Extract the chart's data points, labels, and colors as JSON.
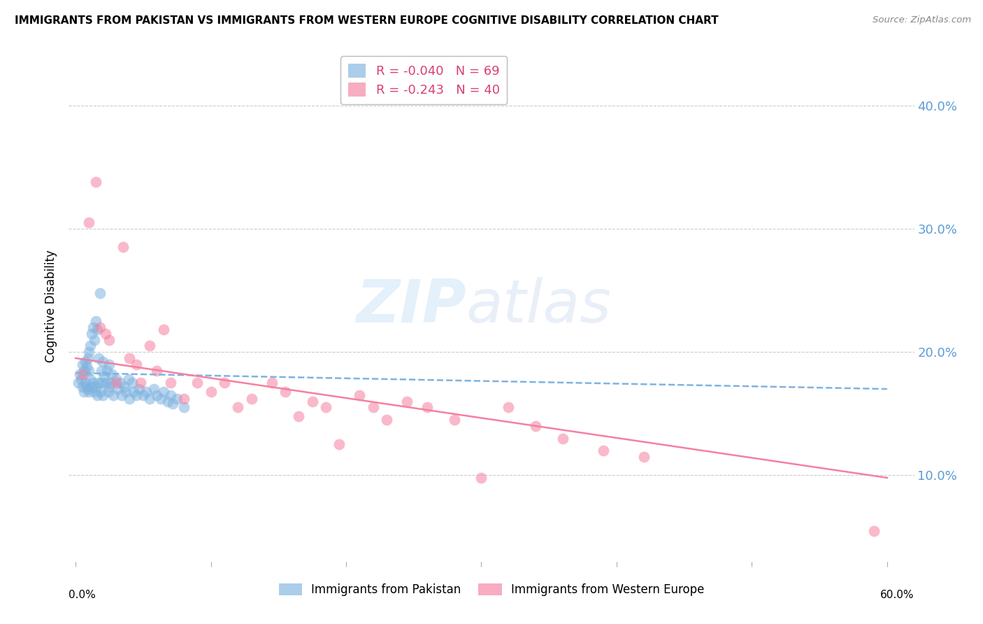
{
  "title": "IMMIGRANTS FROM PAKISTAN VS IMMIGRANTS FROM WESTERN EUROPE COGNITIVE DISABILITY CORRELATION CHART",
  "source": "Source: ZipAtlas.com",
  "ylabel": "Cognitive Disability",
  "y_ticks": [
    0.1,
    0.2,
    0.3,
    0.4
  ],
  "y_tick_labels": [
    "10.0%",
    "20.0%",
    "30.0%",
    "40.0%"
  ],
  "x_ticks": [
    0.0,
    0.1,
    0.2,
    0.3,
    0.4,
    0.5,
    0.6
  ],
  "x_lim": [
    -0.005,
    0.62
  ],
  "y_lim": [
    0.03,
    0.445
  ],
  "pakistan_color": "#7EB3E0",
  "western_europe_color": "#F580A0",
  "pakistan_R": -0.04,
  "pakistan_N": 69,
  "western_europe_R": -0.243,
  "western_europe_N": 40,
  "legend_label_1": "Immigrants from Pakistan",
  "legend_label_2": "Immigrants from Western Europe",
  "watermark_zip": "ZIP",
  "watermark_atlas": "atlas",
  "background_color": "#FFFFFF",
  "grid_color": "#CCCCCC",
  "axis_label_color": "#5B9BD5",
  "pakistan_points_x": [
    0.002,
    0.003,
    0.004,
    0.005,
    0.005,
    0.006,
    0.006,
    0.007,
    0.007,
    0.008,
    0.008,
    0.009,
    0.009,
    0.01,
    0.01,
    0.01,
    0.011,
    0.011,
    0.012,
    0.012,
    0.013,
    0.013,
    0.014,
    0.014,
    0.015,
    0.015,
    0.016,
    0.016,
    0.017,
    0.017,
    0.018,
    0.018,
    0.019,
    0.019,
    0.02,
    0.02,
    0.021,
    0.022,
    0.023,
    0.024,
    0.025,
    0.025,
    0.026,
    0.027,
    0.028,
    0.03,
    0.031,
    0.033,
    0.034,
    0.036,
    0.037,
    0.039,
    0.04,
    0.042,
    0.043,
    0.045,
    0.047,
    0.05,
    0.052,
    0.055,
    0.058,
    0.06,
    0.063,
    0.065,
    0.068,
    0.07,
    0.072,
    0.075,
    0.08
  ],
  "pakistan_points_y": [
    0.175,
    0.182,
    0.178,
    0.19,
    0.172,
    0.185,
    0.168,
    0.192,
    0.175,
    0.188,
    0.172,
    0.195,
    0.17,
    0.2,
    0.185,
    0.168,
    0.205,
    0.178,
    0.215,
    0.172,
    0.22,
    0.175,
    0.21,
    0.168,
    0.225,
    0.172,
    0.218,
    0.165,
    0.195,
    0.175,
    0.248,
    0.168,
    0.185,
    0.175,
    0.192,
    0.165,
    0.18,
    0.175,
    0.185,
    0.168,
    0.19,
    0.172,
    0.175,
    0.182,
    0.165,
    0.178,
    0.17,
    0.175,
    0.165,
    0.172,
    0.168,
    0.178,
    0.162,
    0.175,
    0.168,
    0.165,
    0.17,
    0.165,
    0.168,
    0.162,
    0.17,
    0.165,
    0.162,
    0.168,
    0.16,
    0.165,
    0.158,
    0.162,
    0.155
  ],
  "western_europe_points_x": [
    0.005,
    0.01,
    0.015,
    0.018,
    0.022,
    0.025,
    0.03,
    0.035,
    0.04,
    0.045,
    0.048,
    0.055,
    0.06,
    0.065,
    0.07,
    0.08,
    0.09,
    0.1,
    0.11,
    0.12,
    0.13,
    0.145,
    0.155,
    0.165,
    0.175,
    0.185,
    0.195,
    0.21,
    0.22,
    0.23,
    0.245,
    0.26,
    0.28,
    0.3,
    0.32,
    0.34,
    0.36,
    0.39,
    0.42,
    0.59
  ],
  "western_europe_points_y": [
    0.182,
    0.305,
    0.338,
    0.22,
    0.215,
    0.21,
    0.175,
    0.285,
    0.195,
    0.19,
    0.175,
    0.205,
    0.185,
    0.218,
    0.175,
    0.162,
    0.175,
    0.168,
    0.175,
    0.155,
    0.162,
    0.175,
    0.168,
    0.148,
    0.16,
    0.155,
    0.125,
    0.165,
    0.155,
    0.145,
    0.16,
    0.155,
    0.145,
    0.098,
    0.155,
    0.14,
    0.13,
    0.12,
    0.115,
    0.055
  ],
  "pak_line_x0": 0.0,
  "pak_line_x1": 0.6,
  "pak_line_y0": 0.183,
  "pak_line_y1": 0.17,
  "we_line_x0": 0.0,
  "we_line_x1": 0.6,
  "we_line_y0": 0.195,
  "we_line_y1": 0.098
}
